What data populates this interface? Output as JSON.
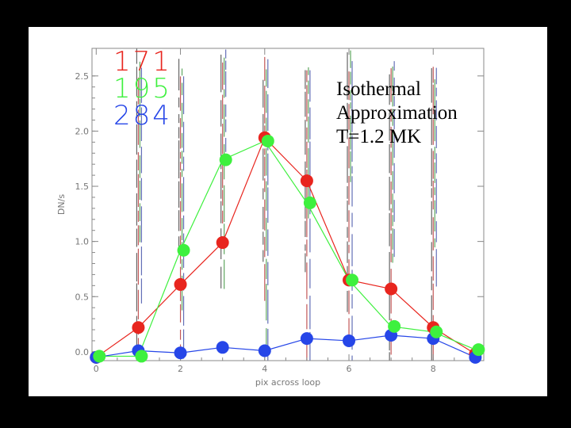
{
  "annotation": {
    "line1": "Isothermal",
    "line2": "Approximation",
    "line3": "T=1.2 MK"
  },
  "colors": {
    "background": "#000000",
    "panel": "#ffffff",
    "s171": "#e8251e",
    "s195": "#3ef03e",
    "s284": "#2646e8",
    "axis": "#888888"
  },
  "chart_data": {
    "type": "line",
    "title": "",
    "xlabel": "pix across loop",
    "ylabel": "DN/s",
    "xlim": [
      -0.1,
      9.2
    ],
    "ylim": [
      -0.08,
      2.75
    ],
    "x_ticks": [
      0,
      2,
      4,
      6,
      8
    ],
    "y_ticks": [
      0.0,
      0.5,
      1.0,
      1.5,
      2.0,
      2.5
    ],
    "x_tick_labels": [
      "0",
      "2",
      "4",
      "6",
      "8"
    ],
    "y_tick_labels": [
      "0.0",
      "0.5",
      "1.0",
      "1.5",
      "2.0",
      "2.5"
    ],
    "grid": false,
    "legend_position": "top-left",
    "series": [
      {
        "name": "171",
        "color": "#e8251e",
        "x": [
          0,
          1,
          2,
          3,
          4,
          5,
          6,
          7,
          8,
          9
        ],
        "y": [
          -0.05,
          0.22,
          0.61,
          0.99,
          1.94,
          1.55,
          0.65,
          0.57,
          0.22,
          -0.02
        ]
      },
      {
        "name": "195",
        "color": "#3ef03e",
        "x": [
          0,
          1,
          2,
          3,
          4,
          5,
          6,
          7,
          8,
          9
        ],
        "y": [
          -0.04,
          -0.04,
          0.92,
          1.74,
          1.91,
          1.35,
          0.65,
          0.23,
          0.18,
          0.02
        ]
      },
      {
        "name": "284",
        "color": "#2646e8",
        "x": [
          0,
          1,
          2,
          3,
          4,
          5,
          6,
          7,
          8,
          9
        ],
        "y": [
          -0.05,
          0.01,
          -0.01,
          0.04,
          0.01,
          0.12,
          0.1,
          0.15,
          0.12,
          -0.05
        ]
      }
    ]
  }
}
